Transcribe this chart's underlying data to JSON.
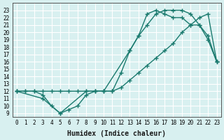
{
  "xlabel": "Humidex (Indice chaleur)",
  "ylabel": "",
  "bg_color": "#d8f0f0",
  "grid_color": "#ffffff",
  "line_color": "#1a7a6e",
  "xlim": [
    -0.5,
    23.5
  ],
  "ylim": [
    8.5,
    24
  ],
  "xticks": [
    0,
    1,
    2,
    3,
    4,
    5,
    6,
    7,
    8,
    9,
    10,
    11,
    12,
    13,
    14,
    15,
    16,
    17,
    18,
    19,
    20,
    21,
    22,
    23
  ],
  "yticks": [
    9,
    10,
    11,
    12,
    13,
    14,
    15,
    16,
    17,
    18,
    19,
    20,
    21,
    22,
    23
  ],
  "line1_x": [
    0,
    1,
    2,
    3,
    4,
    5,
    6,
    7,
    8,
    9,
    10,
    11,
    12,
    13,
    14,
    15,
    16,
    17,
    18,
    19,
    20,
    21,
    22,
    23
  ],
  "line1_y": [
    12,
    12,
    12,
    11.5,
    10,
    9,
    9.5,
    10,
    11.5,
    12,
    12,
    12,
    14.5,
    17.5,
    19.5,
    21,
    22.5,
    23,
    23,
    23,
    22.5,
    21,
    19,
    16
  ],
  "line2_x": [
    0,
    1,
    2,
    3,
    4,
    5,
    6,
    7,
    8,
    9,
    10,
    11,
    12,
    13,
    14,
    15,
    16,
    17,
    18,
    19,
    20,
    21,
    22,
    23
  ],
  "line2_y": [
    12,
    12,
    12,
    12,
    12,
    12,
    12,
    12,
    12,
    12,
    12,
    12,
    12.5,
    13.5,
    14.5,
    15.5,
    16.5,
    17.5,
    18.5,
    20,
    21,
    22,
    22.5,
    16
  ],
  "line3_x": [
    0,
    3,
    5,
    8,
    9,
    10,
    13,
    14,
    15,
    16,
    17,
    18,
    19,
    20,
    21,
    22,
    23
  ],
  "line3_y": [
    12,
    11,
    9,
    12,
    12,
    12,
    17.5,
    19.5,
    22.5,
    23,
    22.5,
    22,
    22,
    21,
    21,
    19.5,
    16
  ]
}
